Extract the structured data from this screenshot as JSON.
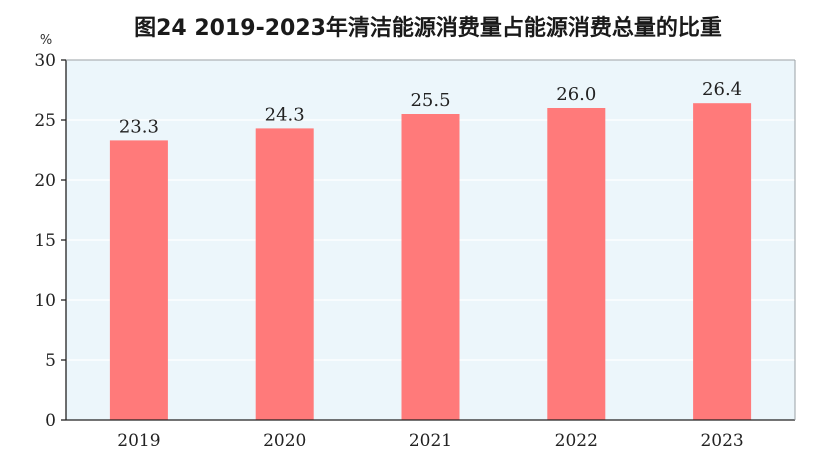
{
  "chart_data": {
    "type": "bar",
    "title": "图24    2019-2023年清洁能源消费量占能源消费总量的比重",
    "unit": "%",
    "categories": [
      "2019",
      "2020",
      "2021",
      "2022",
      "2023"
    ],
    "values": [
      23.3,
      24.3,
      25.5,
      26.0,
      26.4
    ],
    "value_labels": [
      "23.3",
      "24.3",
      "25.5",
      "26.0",
      "26.4"
    ],
    "ylim": [
      0,
      30
    ],
    "yticks": [
      0,
      5,
      10,
      15,
      20,
      25,
      30
    ],
    "grid": true,
    "legend": "none",
    "colors": {
      "bar": "#ff7a7a",
      "plot_background": "#ecf6fb",
      "grid": "#ffffff",
      "axis": "#222222"
    }
  }
}
